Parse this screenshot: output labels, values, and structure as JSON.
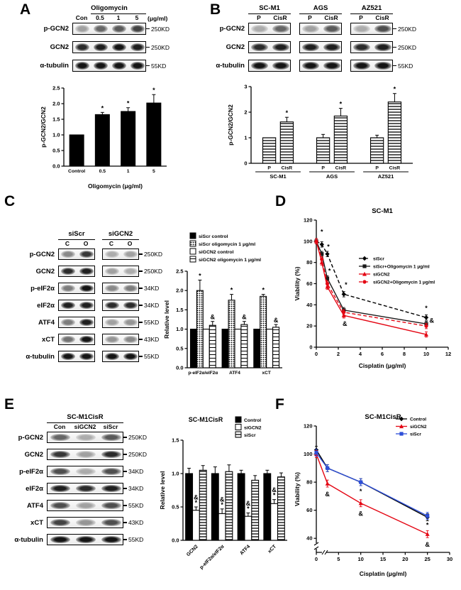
{
  "panels": {
    "A": {
      "label": "A",
      "blot": {
        "groups": [
          {
            "header": "Oligomycin",
            "header_line": [
              1,
              3
            ],
            "lanes": [
              "Con",
              "0.5",
              "1",
              "5"
            ]
          }
        ],
        "unit": "(μg/ml)",
        "rows": [
          {
            "name": "p-GCN2",
            "marker": "250KD",
            "bands": [
              [
                0.35,
                0.6,
                0.65,
                0.75
              ]
            ]
          },
          {
            "name": "GCN2",
            "marker": "250KD",
            "bands": [
              [
                0.85,
                0.9,
                0.95,
                0.9
              ]
            ]
          },
          {
            "name": "α-tubulin",
            "marker": "55KD",
            "bands": [
              [
                0.95,
                0.95,
                0.95,
                0.95
              ]
            ]
          }
        ]
      }
    },
    "B": {
      "label": "B",
      "blot": {
        "groups": [
          {
            "header": "SC-M1",
            "lanes": [
              "P",
              "CisR"
            ]
          },
          {
            "header": "AGS",
            "lanes": [
              "P",
              "CisR"
            ]
          },
          {
            "header": "AZ521",
            "lanes": [
              "P",
              "CisR"
            ]
          }
        ],
        "rows": [
          {
            "name": "p-GCN2",
            "marker": "250KD",
            "bands": [
              [
                0.3,
                0.6
              ],
              [
                0.35,
                0.65
              ],
              [
                0.3,
                0.7
              ]
            ]
          },
          {
            "name": "GCN2",
            "marker": "250KD",
            "bands": [
              [
                0.85,
                0.9
              ],
              [
                0.9,
                0.9
              ],
              [
                0.85,
                0.9
              ]
            ]
          },
          {
            "name": "α-tubulin",
            "marker": "55KD",
            "bands": [
              [
                0.95,
                0.95
              ],
              [
                0.95,
                0.95
              ],
              [
                0.95,
                0.95
              ]
            ]
          }
        ]
      }
    },
    "C": {
      "label": "C",
      "blot": {
        "groups": [
          {
            "header": "siScr",
            "lanes": [
              "C",
              "O"
            ]
          },
          {
            "header": "siGCN2",
            "lanes": [
              "C",
              "O"
            ]
          }
        ],
        "rows": [
          {
            "name": "p-GCN2",
            "marker": "250KD",
            "bands": [
              [
                0.45,
                0.8
              ],
              [
                0.3,
                0.35
              ]
            ]
          },
          {
            "name": "GCN2",
            "marker": "250KD",
            "bands": [
              [
                0.85,
                0.9
              ],
              [
                0.35,
                0.3
              ]
            ]
          },
          {
            "name": "p-eIF2α",
            "marker": "34KD",
            "bands": [
              [
                0.5,
                0.95
              ],
              [
                0.45,
                0.5
              ]
            ]
          },
          {
            "name": "eIF2α",
            "marker": "34KD",
            "bands": [
              [
                0.9,
                0.9
              ],
              [
                0.85,
                0.85
              ]
            ]
          },
          {
            "name": "ATF4",
            "marker": "55KD",
            "bands": [
              [
                0.5,
                0.9
              ],
              [
                0.35,
                0.4
              ]
            ]
          },
          {
            "name": "xCT",
            "marker": "43KD",
            "bands": [
              [
                0.55,
                0.95
              ],
              [
                0.4,
                0.45
              ]
            ]
          },
          {
            "name": "α-tubulin",
            "marker": "55KD",
            "bands": [
              [
                0.95,
                0.95
              ],
              [
                0.95,
                0.95
              ]
            ]
          }
        ]
      }
    },
    "D": {
      "label": "D"
    },
    "E": {
      "label": "E",
      "blot": {
        "groups": [
          {
            "header": "SC-M1CisR",
            "lanes": [
              "Con",
              "siGCN2",
              "siScr"
            ]
          }
        ],
        "rows": [
          {
            "name": "p-GCN2",
            "marker": "250KD",
            "bands": [
              [
                0.6,
                0.3,
                0.65
              ]
            ]
          },
          {
            "name": "GCN2",
            "marker": "250KD",
            "bands": [
              [
                0.8,
                0.35,
                0.85
              ]
            ]
          },
          {
            "name": "p-eIF2α",
            "marker": "34KD",
            "bands": [
              [
                0.7,
                0.3,
                0.7
              ]
            ]
          },
          {
            "name": "eIF2α",
            "marker": "34KD",
            "bands": [
              [
                0.9,
                0.85,
                0.9
              ]
            ]
          },
          {
            "name": "ATF4",
            "marker": "55KD",
            "bands": [
              [
                0.7,
                0.35,
                0.7
              ]
            ]
          },
          {
            "name": "xCT",
            "marker": "43KD",
            "bands": [
              [
                0.75,
                0.4,
                0.7
              ]
            ]
          },
          {
            "name": "α-tubulin",
            "marker": "55KD",
            "bands": [
              [
                0.95,
                0.95,
                0.95
              ]
            ]
          }
        ]
      }
    },
    "F": {
      "label": "F"
    }
  },
  "chart_data": [
    {
      "id": "chartA",
      "type": "bar",
      "categories": [
        "Control",
        "0.5",
        "1",
        "5"
      ],
      "values": [
        1.0,
        1.65,
        1.75,
        2.02
      ],
      "errors": [
        0,
        0.07,
        0.12,
        0.27
      ],
      "annotations": [
        "",
        "*",
        "*",
        "*"
      ],
      "bar_fill": "black",
      "ylabel": "p-GCN2/GCN2",
      "xlabel": "Oligomycin (μg/ml)",
      "ylim": [
        0,
        2.5
      ],
      "yticks": [
        "0.0",
        "0.5",
        "1.0",
        "1.5",
        "2.0",
        "2.5"
      ]
    },
    {
      "id": "chartB",
      "type": "bar",
      "categories": [
        "P",
        "CisR",
        "P",
        "CisR",
        "P",
        "CisR"
      ],
      "group_labels": [
        "SC-M1",
        "AGS",
        "AZ521"
      ],
      "values": [
        1.0,
        1.62,
        1.0,
        1.85,
        1.0,
        2.4
      ],
      "errors": [
        0,
        0.18,
        0.13,
        0.3,
        0.1,
        0.33
      ],
      "annotations": [
        "",
        "*",
        "",
        "*",
        "",
        "*"
      ],
      "bar_fill": "hatch-h",
      "ylabel": "p-GCN2/GCN2",
      "xlabel": "",
      "ylim": [
        0,
        3
      ],
      "yticks": [
        "0",
        "1",
        "2",
        "3"
      ]
    },
    {
      "id": "chartC",
      "type": "bar",
      "categories": [
        "p-eIF2α/eIF2α",
        "ATF4",
        "xCT"
      ],
      "series": [
        {
          "name": "siScr control",
          "fill": "black",
          "values": [
            1.0,
            1.0,
            1.0
          ],
          "errors": [
            0,
            0,
            0
          ],
          "annotations": [
            "",
            "",
            ""
          ]
        },
        {
          "name": "siScr oligomycin 1 μg/ml",
          "fill": "hatch-dot",
          "values": [
            2.0,
            1.75,
            1.85
          ],
          "errors": [
            0.27,
            0.15,
            0.05
          ],
          "annotations": [
            "*",
            "*",
            "*"
          ]
        },
        {
          "name": "siGCN2 control",
          "fill": "white",
          "values": [
            1.0,
            1.0,
            1.0
          ],
          "errors": [
            0,
            0,
            0
          ],
          "annotations": [
            "",
            "",
            ""
          ]
        },
        {
          "name": "siGCN2 oligomycin 1 μg/ml",
          "fill": "hatch-lh",
          "values": [
            1.1,
            1.12,
            1.05
          ],
          "errors": [
            0.1,
            0.08,
            0.07
          ],
          "annotations": [
            "&",
            "&",
            "&"
          ]
        }
      ],
      "ylabel": "Relative level",
      "ylim": [
        0,
        2.5
      ],
      "yticks": [
        "0.0",
        "0.5",
        "1.0",
        "1.5",
        "2.0",
        "2.5"
      ]
    },
    {
      "id": "chartD",
      "type": "line",
      "title": "SC-M1",
      "x": [
        0,
        0.5,
        1,
        2.5,
        10
      ],
      "series": [
        {
          "name": "siScr",
          "color": "#000000",
          "dash": "5,3",
          "marker": "diamond",
          "values": [
            100,
            97,
            88,
            50,
            28
          ]
        },
        {
          "name": "siScr+Oligomycin 1 μg/ml",
          "color": "#1a1a1a",
          "dash": "",
          "marker": "square",
          "values": [
            100,
            88,
            65,
            35,
            22
          ]
        },
        {
          "name": "siGCN2",
          "color": "#e40613",
          "dash": "",
          "marker": "triangle",
          "values": [
            100,
            80,
            57,
            30,
            12
          ]
        },
        {
          "name": "siGCN2+Oligomycin 1 μg/ml",
          "color": "#e40613",
          "dash": "5,3",
          "marker": "circle",
          "values": [
            100,
            83,
            60,
            33,
            20
          ]
        }
      ],
      "annotations": [
        {
          "x": 0.5,
          "y": 107,
          "text": "*"
        },
        {
          "x": 1.1,
          "y": 93,
          "text": "*"
        },
        {
          "x": 1.2,
          "y": 70,
          "text": "*"
        },
        {
          "x": 2.7,
          "y": 57,
          "text": "*"
        },
        {
          "x": 2.6,
          "y": 20,
          "text": "&"
        },
        {
          "x": 10,
          "y": 35,
          "text": "*"
        },
        {
          "x": 10.5,
          "y": 23,
          "text": "&"
        }
      ],
      "xlabel": "Cisplatin (μg/ml)",
      "ylabel": "Viability (%)",
      "xlim": [
        0,
        12
      ],
      "xticks": [
        0,
        2,
        4,
        6,
        8,
        10,
        12
      ],
      "ylim": [
        0,
        120
      ],
      "yticks": [
        0,
        20,
        40,
        60,
        80,
        100,
        120
      ]
    },
    {
      "id": "chartE",
      "type": "bar",
      "title": "SC-M1CisR",
      "categories": [
        "GCN2",
        "p-eIF2α/eIF2α",
        "ATF4",
        "xCT"
      ],
      "series": [
        {
          "name": "Control",
          "fill": "black",
          "values": [
            1.0,
            1.0,
            1.0,
            1.0
          ],
          "errors": [
            0.08,
            0.1,
            0.05,
            0.05
          ],
          "annotations": [
            "",
            "",
            "",
            ""
          ]
        },
        {
          "name": "siGCN2",
          "fill": "white",
          "values": [
            0.45,
            0.4,
            0.36,
            0.55
          ],
          "errors": [
            0.05,
            0.07,
            0.05,
            0.06
          ],
          "annotations": [
            "&*",
            "&*",
            "&*",
            "&*"
          ]
        },
        {
          "name": "siScr",
          "fill": "hatch-h",
          "values": [
            1.05,
            1.03,
            0.9,
            0.95
          ],
          "errors": [
            0.07,
            0.1,
            0.07,
            0.06
          ],
          "annotations": [
            "",
            "",
            "",
            ""
          ]
        }
      ],
      "ylabel": "Relative level",
      "ylim": [
        0,
        1.5
      ],
      "yticks": [
        "0.0",
        "0.5",
        "1.0",
        "1.5"
      ]
    },
    {
      "id": "chartF",
      "type": "line",
      "title": "SC-M1CisR",
      "x": [
        0,
        2.5,
        10,
        25
      ],
      "series": [
        {
          "name": "Control",
          "color": "#000000",
          "dash": "",
          "marker": "diamond",
          "values": [
            103,
            90,
            80,
            55
          ]
        },
        {
          "name": "siGCN2",
          "color": "#e40613",
          "dash": "",
          "marker": "triangle",
          "values": [
            100,
            79,
            65,
            43
          ]
        },
        {
          "name": "siScr",
          "color": "#2e4fd8",
          "dash": "",
          "marker": "square",
          "values": [
            101,
            90,
            80,
            56
          ]
        }
      ],
      "annotations": [
        {
          "x": 2.5,
          "y": 70,
          "text": "&"
        },
        {
          "x": 10,
          "y": 72,
          "text": "*"
        },
        {
          "x": 10,
          "y": 56,
          "text": "&"
        },
        {
          "x": 25,
          "y": 48,
          "text": "*"
        },
        {
          "x": 25,
          "y": 34,
          "text": "&"
        }
      ],
      "xlabel": "Cisplatin (μg/ml)",
      "ylabel": "Viability (%)",
      "xlim": [
        0,
        30
      ],
      "xticks": [
        0,
        5,
        10,
        15,
        20,
        25,
        30
      ],
      "ylim": [
        30,
        120
      ],
      "yticks": [
        40,
        60,
        80,
        100,
        120
      ],
      "ybreak": true,
      "xbreak": true
    }
  ]
}
